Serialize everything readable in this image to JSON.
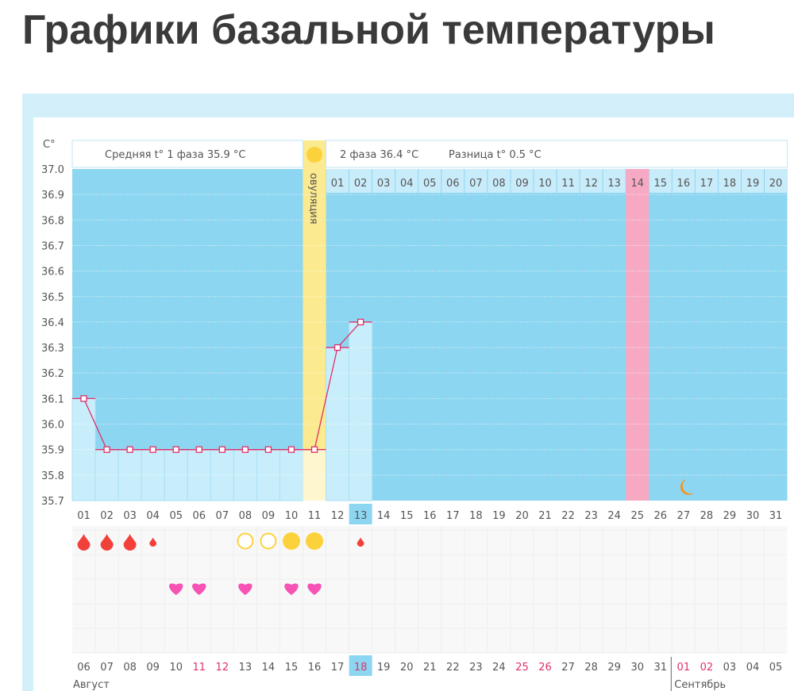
{
  "title": "Графики базальной температуры",
  "chart_data": {
    "type": "line",
    "ylabel": "C°",
    "ylim": [
      35.7,
      37.0
    ],
    "yticks": [
      "37.0",
      "36.9",
      "36.8",
      "36.7",
      "36.6",
      "36.5",
      "36.4",
      "36.3",
      "36.2",
      "36.1",
      "36.0",
      "35.9",
      "35.8",
      "35.7"
    ],
    "grid": true,
    "header": {
      "phase1": "Средняя t° 1 фаза 35.9 °C",
      "phase2": "2 фаза 36.4 °C",
      "difference": "Разница t° 0.5 °C"
    },
    "ovulation_label": "овуляция",
    "ovulation_day": 11,
    "highlighted_day": 25,
    "current_day": 13,
    "moon_day": 27,
    "cycle_days": [
      "01",
      "02",
      "03",
      "04",
      "05",
      "06",
      "07",
      "08",
      "09",
      "10",
      "11",
      "12",
      "13",
      "14",
      "15",
      "16",
      "17",
      "18",
      "19",
      "20"
    ],
    "cycle_day_highlighted": "14",
    "days": [
      "01",
      "02",
      "03",
      "04",
      "05",
      "06",
      "07",
      "08",
      "09",
      "10",
      "11",
      "12",
      "13",
      "14",
      "15",
      "16",
      "17",
      "18",
      "19",
      "20",
      "21",
      "22",
      "23",
      "24",
      "25",
      "26",
      "27",
      "28",
      "29",
      "30",
      "31"
    ],
    "temperatures": [
      36.1,
      35.9,
      35.9,
      35.9,
      35.9,
      35.9,
      35.9,
      35.9,
      35.9,
      35.9,
      35.9,
      36.3,
      36.4
    ],
    "markers": {
      "bleeding_heavy": [
        1,
        2,
        3
      ],
      "bleeding_light": [
        4,
        13
      ],
      "mucus_empty": [
        8,
        9
      ],
      "mucus_full": [
        10,
        11
      ],
      "hearts": [
        5,
        6,
        8,
        10,
        11
      ]
    },
    "dates": [
      "06",
      "07",
      "08",
      "09",
      "10",
      "11",
      "12",
      "13",
      "14",
      "15",
      "16",
      "17",
      "18",
      "19",
      "20",
      "21",
      "22",
      "23",
      "24",
      "25",
      "26",
      "27",
      "28",
      "29",
      "30",
      "31",
      "01",
      "02",
      "03",
      "04",
      "05"
    ],
    "weekend_dates_idx": [
      5,
      6,
      12,
      19,
      20,
      26,
      27
    ],
    "months": [
      "Август",
      "Сентябрь"
    ],
    "colors": {
      "plot": "#8dd6f1",
      "fill": "#c9eefb",
      "line": "#e0306a",
      "ovulation": "#fbea8f",
      "pink": "#f7a9c4",
      "sun": "#fcd23c",
      "drop": "#f2403a",
      "heart": "#f653b4",
      "moon": "#f6931d",
      "weekend": "#e0306a"
    }
  }
}
